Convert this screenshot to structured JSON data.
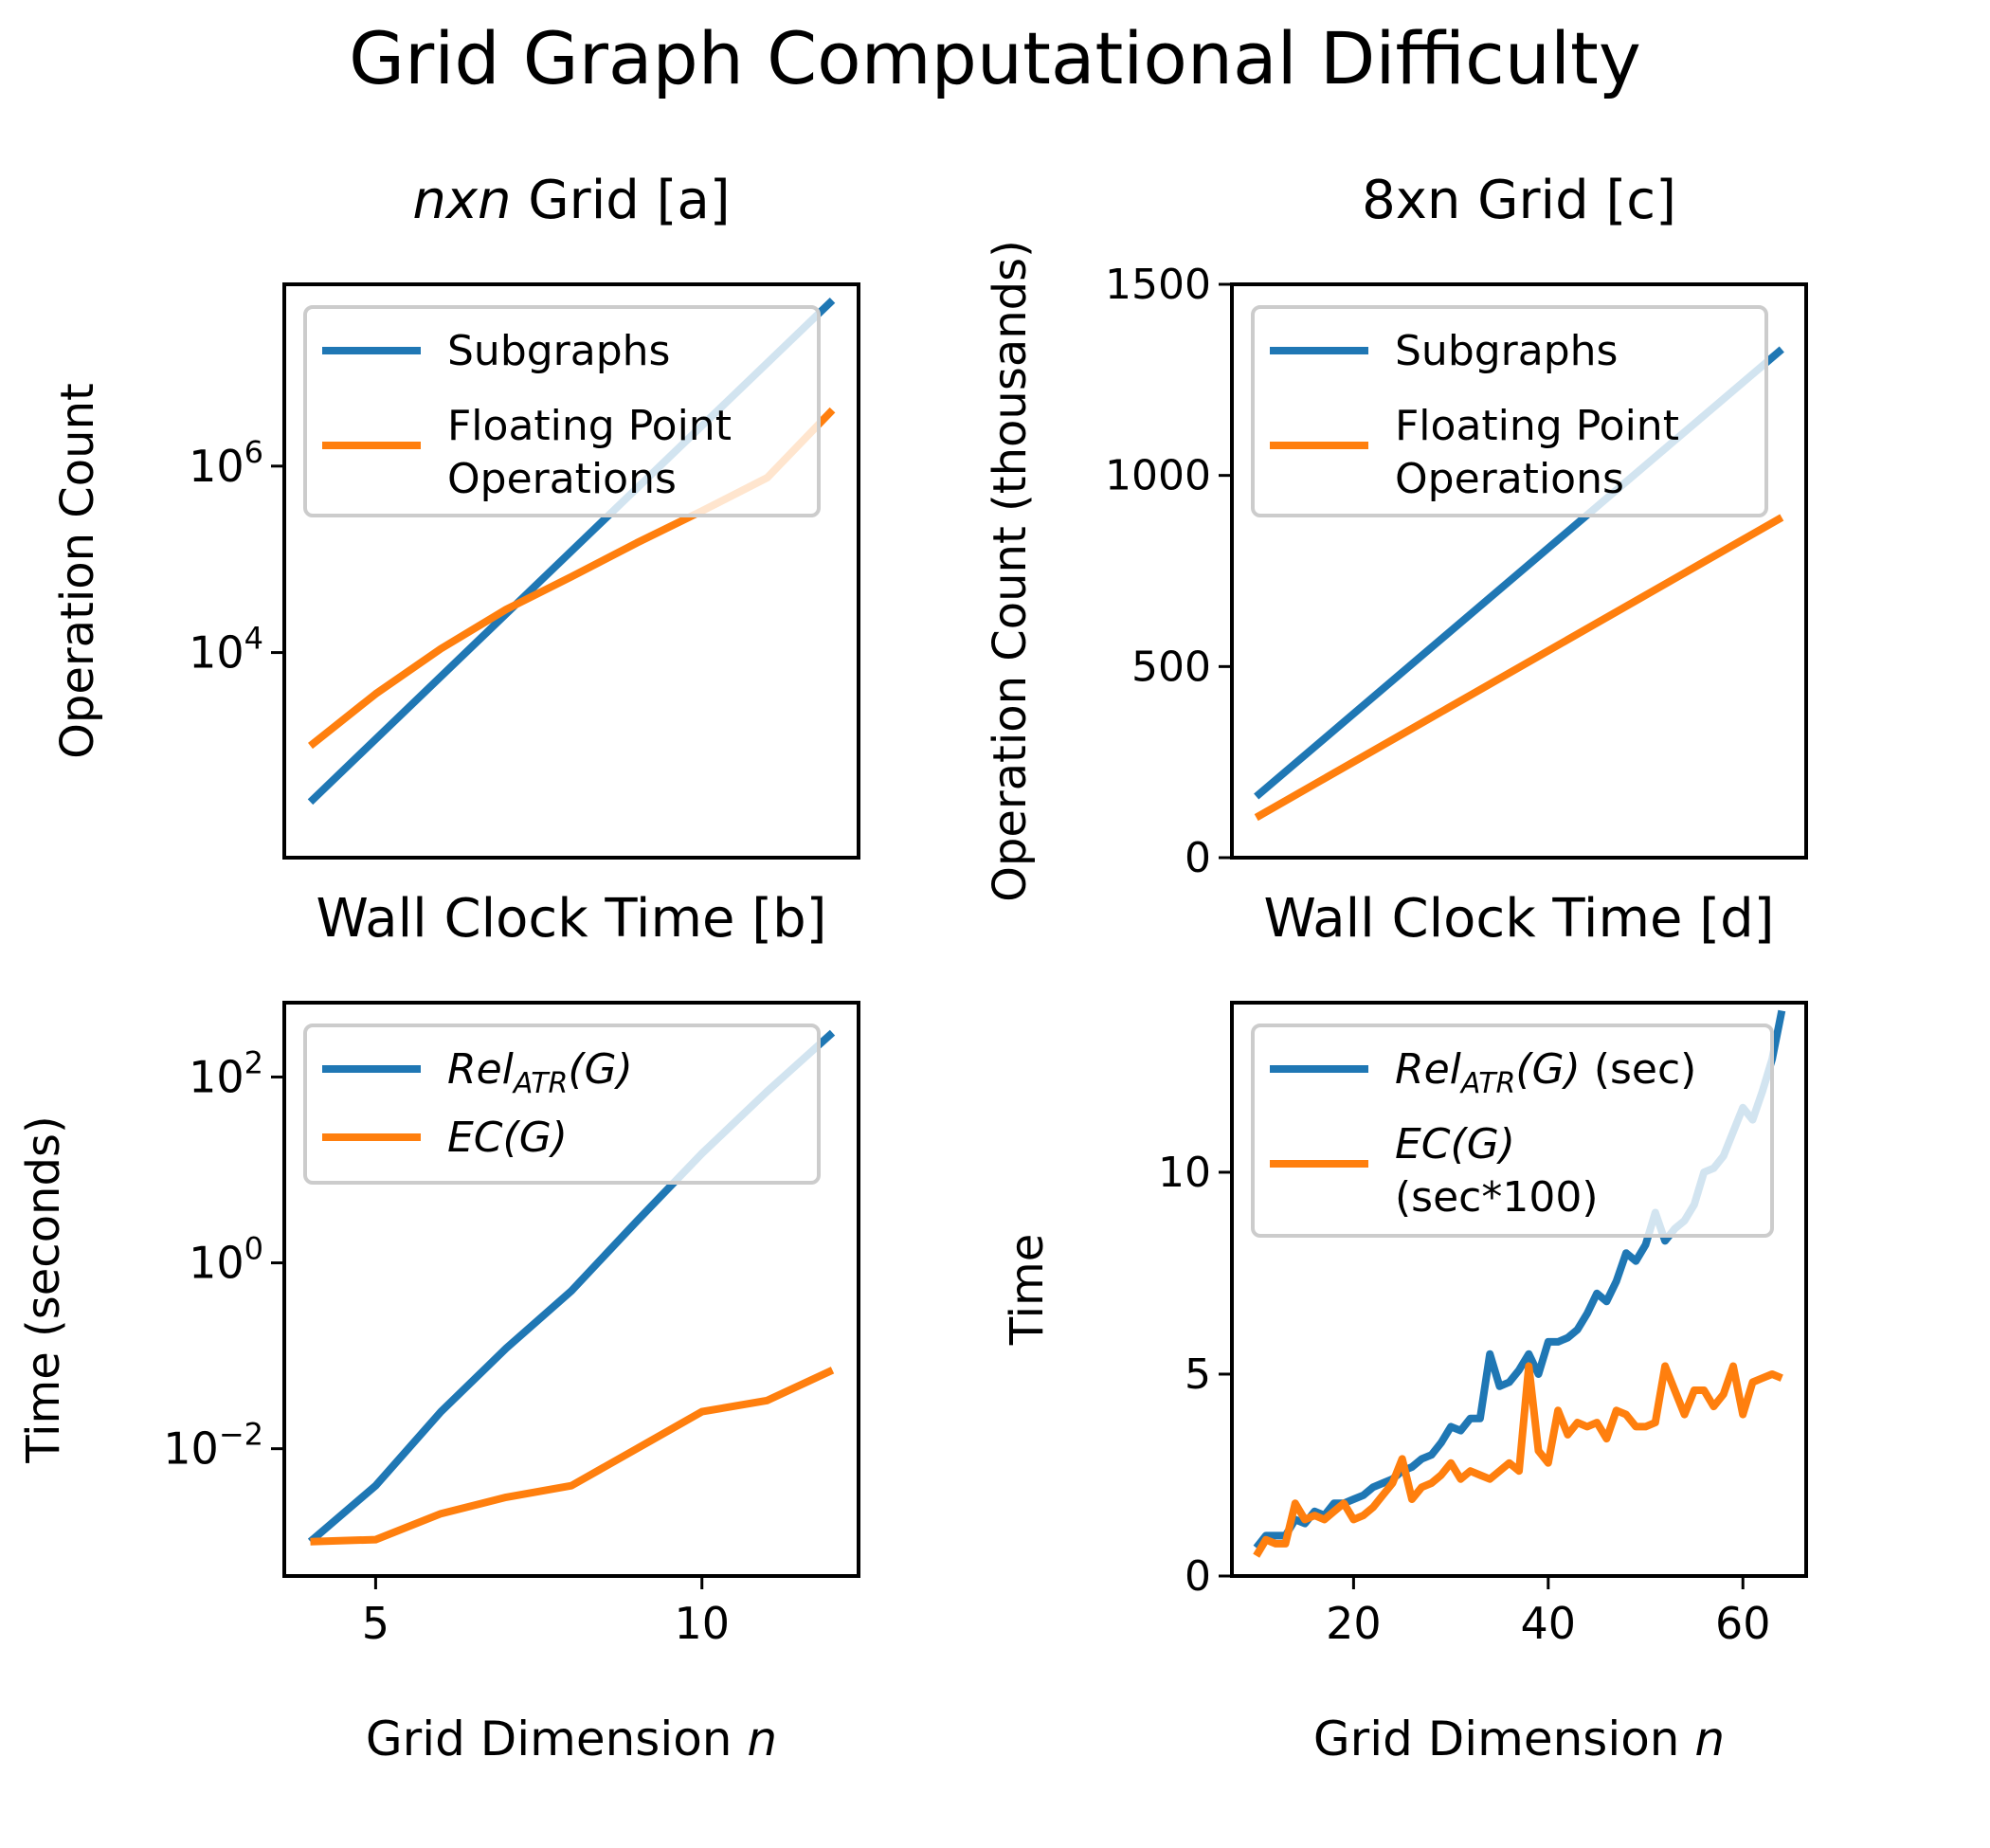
{
  "figure": {
    "title": "Grid Graph Computational Difficulty"
  },
  "colors": {
    "blue": "#1f77b4",
    "orange": "#ff7f0e"
  },
  "chart_data": [
    {
      "id": "a",
      "type": "line",
      "title": "nxn Grid [a]",
      "title_italic": "nxn",
      "title_rest": " Grid [a]",
      "xlabel": "",
      "ylabel": "Operation Count",
      "yscale": "log",
      "xlim": [
        3.6,
        12.4
      ],
      "ylim_log10": [
        1.8,
        7.95
      ],
      "yticks": [
        {
          "value": 10000,
          "base": "10",
          "exp": "4"
        },
        {
          "value": 1000000,
          "base": "10",
          "exp": "6"
        }
      ],
      "legend": {
        "position": "upper left"
      },
      "series": [
        {
          "name": "Subgraphs",
          "color": "#1f77b4",
          "x": [
            4,
            12
          ],
          "y": [
            250,
            60000000
          ]
        },
        {
          "name": "Floating Point\n Operations",
          "color": "#ff7f0e",
          "x": [
            4,
            5,
            6,
            7,
            8,
            9,
            10,
            11,
            12
          ],
          "y": [
            1000,
            3600,
            11000,
            29000,
            65000,
            150000,
            330000,
            750000,
            4000000
          ]
        }
      ]
    },
    {
      "id": "b",
      "type": "line",
      "title": "Wall Clock Time [b]",
      "xlabel": "Grid Dimension n",
      "xlabel_text": "Grid Dimension ",
      "xlabel_italic": "n",
      "ylabel": "Time (seconds)",
      "yscale": "log",
      "xlim": [
        3.6,
        12.4
      ],
      "ylim_log10": [
        -3.37,
        2.8
      ],
      "xticks": [
        5,
        10
      ],
      "yticks": [
        {
          "value": 0.01,
          "base": "10",
          "exp": "−2"
        },
        {
          "value": 1,
          "base": "10",
          "exp": "0"
        },
        {
          "value": 100,
          "base": "10",
          "exp": "2"
        }
      ],
      "legend": {
        "position": "upper left"
      },
      "series": [
        {
          "name": "Rel_ATR(G)",
          "label_main": "Rel",
          "label_sub": "ATR",
          "label_tail": "(G)",
          "color": "#1f77b4",
          "x": [
            4,
            5,
            6,
            7,
            8,
            9,
            10,
            11,
            12
          ],
          "y": [
            0.001,
            0.004,
            0.025,
            0.12,
            0.5,
            2.8,
            15,
            70,
            300
          ]
        },
        {
          "name": "EC(G)",
          "label_main": "EC(G)",
          "color": "#ff7f0e",
          "x": [
            4,
            5,
            6,
            7,
            8,
            9,
            10,
            11,
            12
          ],
          "y": [
            0.001,
            0.00105,
            0.002,
            0.003,
            0.004,
            0.01,
            0.025,
            0.033,
            0.07
          ]
        }
      ]
    },
    {
      "id": "c",
      "type": "line",
      "title": "8xn Grid [c]",
      "xlabel": "",
      "ylabel": "Operation Count (thousands)",
      "yscale": "linear",
      "xlim": [
        7.5,
        66.5
      ],
      "ylim": [
        0,
        1500
      ],
      "yticks": [
        0,
        500,
        1000,
        1500
      ],
      "legend": {
        "position": "upper left"
      },
      "series": [
        {
          "name": "Subgraphs",
          "color": "#1f77b4",
          "x": [
            10,
            64
          ],
          "y": [
            160,
            1330
          ]
        },
        {
          "name": "Floating Point\n Operations",
          "color": "#ff7f0e",
          "x": [
            10,
            64
          ],
          "y": [
            105,
            890
          ]
        }
      ]
    },
    {
      "id": "d",
      "type": "line",
      "title": "Wall Clock Time [d]",
      "xlabel": "Grid Dimension n",
      "xlabel_text": "Grid Dimension ",
      "xlabel_italic": "n",
      "ylabel": "Time",
      "yscale": "linear",
      "xlim": [
        7.5,
        66.5
      ],
      "ylim": [
        0,
        14.2
      ],
      "xticks": [
        20,
        40,
        60
      ],
      "yticks": [
        0,
        5,
        10
      ],
      "legend": {
        "position": "upper left"
      },
      "series": [
        {
          "name": "Rel_ATR(G) (sec)",
          "label_main": "Rel",
          "label_sub": "ATR",
          "label_tail": "(G) (sec)",
          "color": "#1f77b4",
          "x": [
            10,
            11,
            12,
            13,
            14,
            15,
            16,
            17,
            18,
            19,
            20,
            21,
            22,
            23,
            24,
            25,
            26,
            27,
            28,
            29,
            30,
            31,
            32,
            33,
            34,
            35,
            36,
            37,
            38,
            39,
            40,
            41,
            42,
            43,
            44,
            45,
            46,
            47,
            48,
            49,
            50,
            51,
            52,
            53,
            54,
            55,
            56,
            57,
            58,
            59,
            60,
            61,
            62,
            63,
            64
          ],
          "y": [
            0.7,
            1.0,
            1.0,
            1.0,
            1.4,
            1.3,
            1.6,
            1.5,
            1.8,
            1.8,
            1.9,
            2.0,
            2.2,
            2.3,
            2.4,
            2.6,
            2.7,
            2.9,
            3.0,
            3.3,
            3.7,
            3.6,
            3.9,
            3.9,
            5.5,
            4.7,
            4.8,
            5.1,
            5.5,
            5.0,
            5.8,
            5.8,
            5.9,
            6.1,
            6.5,
            7.0,
            6.8,
            7.3,
            8.0,
            7.8,
            8.2,
            9.0,
            8.3,
            8.6,
            8.8,
            9.2,
            10.0,
            10.1,
            10.4,
            11.0,
            11.6,
            11.3,
            12.0,
            12.8,
            14.0
          ]
        },
        {
          "name": "EC(G)\n (sec*100)",
          "label_main": "EC(G)",
          "label_line2": " (sec*100)",
          "color": "#ff7f0e",
          "x": [
            10,
            11,
            12,
            13,
            14,
            15,
            16,
            17,
            18,
            19,
            20,
            21,
            22,
            23,
            24,
            25,
            26,
            27,
            28,
            29,
            30,
            31,
            32,
            33,
            34,
            35,
            36,
            37,
            38,
            39,
            40,
            41,
            42,
            43,
            44,
            45,
            46,
            47,
            48,
            49,
            50,
            51,
            52,
            53,
            54,
            55,
            56,
            57,
            58,
            59,
            60,
            61,
            62,
            63,
            64
          ],
          "y": [
            0.5,
            0.9,
            0.8,
            0.8,
            1.8,
            1.4,
            1.5,
            1.4,
            1.6,
            1.8,
            1.4,
            1.5,
            1.7,
            2.0,
            2.3,
            2.9,
            1.9,
            2.2,
            2.3,
            2.5,
            2.8,
            2.4,
            2.6,
            2.5,
            2.4,
            2.6,
            2.8,
            2.6,
            5.2,
            3.1,
            2.8,
            4.1,
            3.5,
            3.8,
            3.7,
            3.8,
            3.4,
            4.1,
            4.0,
            3.7,
            3.7,
            3.8,
            5.2,
            4.6,
            4.0,
            4.6,
            4.6,
            4.2,
            4.5,
            5.2,
            4.0,
            4.8,
            4.9,
            5.0,
            4.9
          ]
        }
      ]
    }
  ]
}
